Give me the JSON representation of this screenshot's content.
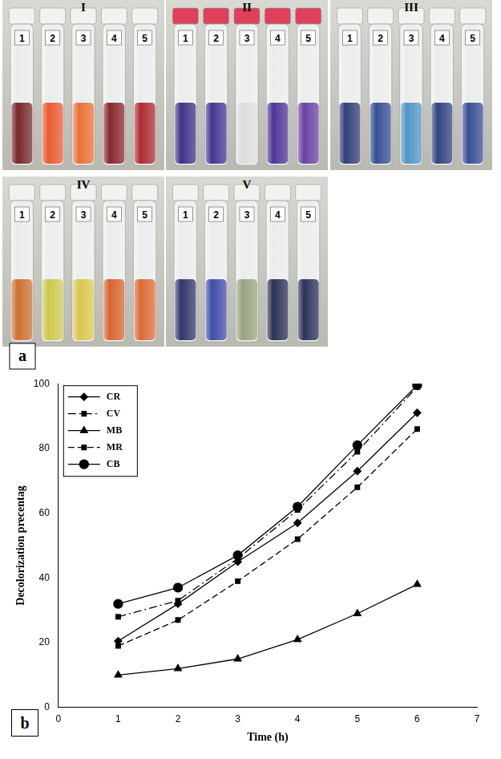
{
  "chart_data": {
    "type": "line",
    "panel_label": "b",
    "xlabel": "Time (h)",
    "ylabel": "Decolorization precentag",
    "xlim": [
      0,
      7
    ],
    "xticks": [
      0,
      1,
      2,
      3,
      4,
      5,
      6,
      7
    ],
    "ylim": [
      0,
      100
    ],
    "yticks": [
      0,
      20,
      40,
      60,
      80,
      100
    ],
    "grid": false,
    "legend": "upper left",
    "x": [
      1,
      2,
      3,
      4,
      5,
      6
    ],
    "series": [
      {
        "name": "CR",
        "color": "#000000",
        "marker": "diamond",
        "line_style": "solid",
        "values": [
          20.5,
          32,
          45,
          57,
          73,
          91
        ]
      },
      {
        "name": "CV",
        "color": "#000000",
        "marker": "square",
        "line_style": "dashdot",
        "values": [
          28,
          33,
          46,
          61,
          79,
          99
        ]
      },
      {
        "name": "MB",
        "color": "#000000",
        "marker": "triangle",
        "line_style": "solid",
        "values": [
          10,
          12,
          15,
          21,
          29,
          38
        ]
      },
      {
        "name": "MR",
        "color": "#000000",
        "marker": "square",
        "line_style": "dashed",
        "values": [
          19,
          27,
          39,
          52,
          68,
          86
        ]
      },
      {
        "name": "CB",
        "color": "#000000",
        "marker": "circle",
        "line_style": "solid",
        "values": [
          32,
          37,
          47,
          62,
          81,
          99.5
        ]
      }
    ]
  },
  "panel_a": {
    "label": "a",
    "photos": [
      {
        "label": "I",
        "tubes": [
          {
            "label": "1",
            "color": "#6b0f14"
          },
          {
            "label": "2",
            "color": "#e8491c"
          },
          {
            "label": "3",
            "color": "#e8601f"
          },
          {
            "label": "4",
            "color": "#7a1016"
          },
          {
            "label": "5",
            "color": "#a3141a"
          }
        ]
      },
      {
        "label": "II",
        "tubes": [
          {
            "label": "1",
            "color": "#2a1a7a"
          },
          {
            "label": "2",
            "color": "#2e1f85"
          },
          {
            "label": "3",
            "color": "#d8d8d8"
          },
          {
            "label": "4",
            "color": "#3a1f8a"
          },
          {
            "label": "5",
            "color": "#5a2a9a"
          }
        ]
      },
      {
        "label": "III",
        "tubes": [
          {
            "label": "1",
            "color": "#1a2a6a"
          },
          {
            "label": "2",
            "color": "#1f3a8a"
          },
          {
            "label": "3",
            "color": "#3f8ac0"
          },
          {
            "label": "4",
            "color": "#1a2e70"
          },
          {
            "label": "5",
            "color": "#223a88"
          }
        ]
      },
      {
        "label": "IV",
        "tubes": [
          {
            "label": "1",
            "color": "#c8621a"
          },
          {
            "label": "2",
            "color": "#c9c23a"
          },
          {
            "label": "3",
            "color": "#d4c23a"
          },
          {
            "label": "4",
            "color": "#d4521a"
          },
          {
            "label": "5",
            "color": "#d85a1e"
          }
        ]
      },
      {
        "label": "V",
        "tubes": [
          {
            "label": "1",
            "color": "#1a1f5a"
          },
          {
            "label": "2",
            "color": "#2a3aa0"
          },
          {
            "label": "3",
            "color": "#8a9a70"
          },
          {
            "label": "4",
            "color": "#121a40"
          },
          {
            "label": "5",
            "color": "#141c48"
          }
        ]
      }
    ]
  }
}
